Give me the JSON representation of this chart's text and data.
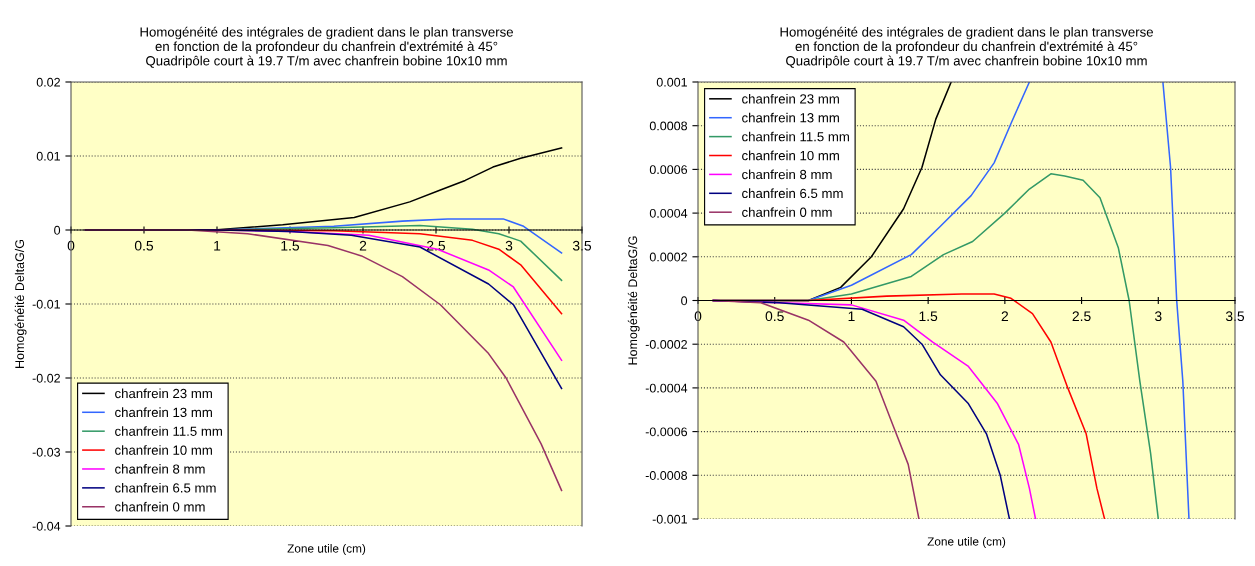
{
  "chart_data": [
    {
      "type": "line",
      "title": "Homogénéité des intégrales de gradient dans le plan transverse\nen fonction de la profondeur du chanfrein d'extrémité à 45°\nQuadripôle court à 19.7 T/m avec chanfrein bobine 10x10 mm",
      "xlabel": "Zone utile (cm)",
      "ylabel": "Homogénéité DeltaG/G",
      "xlim": [
        0,
        3.5
      ],
      "xticks": [
        0,
        0.5,
        1,
        1.5,
        2,
        2.5,
        3,
        3.5
      ],
      "ylim": [
        -0.04,
        0.02
      ],
      "yticks": [
        -0.04,
        -0.03,
        -0.02,
        -0.01,
        0,
        0.01,
        0.02
      ],
      "grid": "y",
      "legend": "bottom left",
      "marker": "none",
      "line_style": "solid",
      "series": [
        {
          "name": "chanfrein 23 mm",
          "color": "#000000",
          "x": [
            0.1,
            0.98,
            1.45,
            1.94,
            2.32,
            2.53,
            2.7,
            2.89,
            3.08,
            3.36
          ],
          "values": [
            0,
            0,
            0.0007,
            0.0017,
            0.0038,
            0.0054,
            0.0067,
            0.0085,
            0.0097,
            0.0111
          ]
        },
        {
          "name": "chanfrein 13 mm",
          "color": "#3366ff",
          "x": [
            0.1,
            1.0,
            1.8,
            2.27,
            2.58,
            2.96,
            3.1,
            3.36
          ],
          "values": [
            0,
            0,
            0.0005,
            0.0012,
            0.0015,
            0.0015,
            0.0005,
            -0.0031
          ]
        },
        {
          "name": "chanfrein 11.5 mm",
          "color": "#339966",
          "x": [
            0.1,
            1.0,
            1.8,
            2.39,
            2.75,
            2.93,
            3.08,
            3.36
          ],
          "values": [
            0,
            0,
            0.0003,
            0.0006,
            0.0001,
            -0.0005,
            -0.0015,
            -0.0068
          ]
        },
        {
          "name": "chanfrein 10 mm",
          "color": "#ff0000",
          "x": [
            0.1,
            1.0,
            1.8,
            2.39,
            2.75,
            2.93,
            3.08,
            3.36
          ],
          "values": [
            0,
            0,
            -0.0001,
            -0.0005,
            -0.0014,
            -0.0026,
            -0.0047,
            -0.0113
          ]
        },
        {
          "name": "chanfrein 8 mm",
          "color": "#ff00ff",
          "x": [
            0.1,
            1.0,
            1.5,
            2.04,
            2.51,
            2.86,
            3.03,
            3.36
          ],
          "values": [
            0,
            0,
            -0.0002,
            -0.0007,
            -0.0026,
            -0.0054,
            -0.0077,
            -0.0176
          ]
        },
        {
          "name": "chanfrein 6.5 mm",
          "color": "#000080",
          "x": [
            0.1,
            1.0,
            1.5,
            1.92,
            2.39,
            2.86,
            3.03,
            3.36
          ],
          "values": [
            0,
            0,
            -0.0002,
            -0.0007,
            -0.0023,
            -0.0073,
            -0.0101,
            -0.0214
          ]
        },
        {
          "name": "chanfrein 0 mm",
          "color": "#993366",
          "x": [
            0.1,
            0.8,
            1.21,
            1.76,
            1.99,
            2.27,
            2.53,
            2.86,
            2.98,
            3.22,
            3.36
          ],
          "values": [
            0,
            0,
            -0.0005,
            -0.0021,
            -0.0035,
            -0.0063,
            -0.0101,
            -0.0167,
            -0.02,
            -0.0289,
            -0.0352
          ]
        }
      ]
    },
    {
      "type": "line",
      "title": "Homogénéité des intégrales de gradient dans le plan transverse\nen fonction de la profondeur du chanfrein d'extrémité à 45°\nQuadripôle court à 19.7 T/m avec chanfrein bobine 10x10 mm",
      "xlabel": "Zone utile (cm)",
      "ylabel": "Homogénéité DeltaG/G",
      "xlim": [
        0,
        3.5
      ],
      "xticks": [
        0,
        0.5,
        1,
        1.5,
        2,
        2.5,
        3,
        3.5
      ],
      "ylim": [
        -0.001,
        0.001
      ],
      "yticks": [
        -0.001,
        -0.0008,
        -0.0006,
        -0.0004,
        -0.0002,
        0,
        0.0002,
        0.0004,
        0.0006,
        0.0008,
        0.001
      ],
      "grid": "y",
      "legend": "top left",
      "marker": "none",
      "line_style": "solid",
      "series": [
        {
          "name": "chanfrein 23 mm",
          "color": "#000000",
          "x": [
            0.1,
            0.72,
            0.93,
            1.13,
            1.34,
            1.46,
            1.55,
            1.65
          ],
          "values": [
            0,
            0,
            6e-05,
            0.0002,
            0.00042,
            0.00061,
            0.00083,
            0.001
          ]
        },
        {
          "name": "chanfrein 13 mm",
          "color": "#3366ff",
          "x": [
            0.1,
            0.72,
            1.0,
            1.39,
            1.58,
            1.78,
            1.93,
            2.04,
            2.16,
            2.6,
            3.03,
            3.08,
            3.12,
            3.16,
            3.2
          ],
          "values": [
            0,
            0,
            7e-05,
            0.00021,
            0.00034,
            0.00048,
            0.00063,
            0.00081,
            0.001,
            null,
            0.001,
            0.00061,
            0,
            -0.00037,
            -0.001
          ]
        },
        {
          "name": "chanfrein 11.5 mm",
          "color": "#339966",
          "x": [
            0.1,
            0.72,
            1.0,
            1.39,
            1.6,
            1.79,
            2.0,
            2.16,
            2.3,
            2.39,
            2.51,
            2.62,
            2.74,
            2.81,
            2.88,
            2.95,
            3.0
          ],
          "values": [
            0,
            0,
            3e-05,
            0.00011,
            0.00021,
            0.00027,
            0.0004,
            0.00051,
            0.00058,
            0.00057,
            0.00055,
            0.00047,
            0.00024,
            0,
            -0.00037,
            -0.0007,
            -0.001
          ]
        },
        {
          "name": "chanfrein 10 mm",
          "color": "#ff0000",
          "x": [
            0.1,
            0.72,
            1.23,
            1.72,
            1.93,
            2.04,
            2.18,
            2.3,
            2.41,
            2.53,
            2.6,
            2.65
          ],
          "values": [
            0,
            0,
            2e-05,
            3e-05,
            3e-05,
            1e-05,
            -6e-05,
            -0.00019,
            -0.0004,
            -0.00061,
            -0.00086,
            -0.001
          ]
        },
        {
          "name": "chanfrein 8 mm",
          "color": "#ff00ff",
          "x": [
            0.1,
            0.53,
            1.0,
            1.34,
            1.53,
            1.76,
            1.95,
            2.09,
            2.16,
            2.2
          ],
          "values": [
            0,
            -1e-05,
            -2e-05,
            -9e-05,
            -0.00019,
            -0.0003,
            -0.00047,
            -0.00066,
            -0.00086,
            -0.001
          ]
        },
        {
          "name": "chanfrein 6.5 mm",
          "color": "#000080",
          "x": [
            0.1,
            0.53,
            1.07,
            1.34,
            1.46,
            1.58,
            1.76,
            1.88,
            1.97,
            2.03
          ],
          "values": [
            0,
            -1e-05,
            -4e-05,
            -0.00012,
            -0.0002,
            -0.00034,
            -0.00047,
            -0.00061,
            -0.0008,
            -0.001
          ]
        },
        {
          "name": "chanfrein 0 mm",
          "color": "#993366",
          "x": [
            0.1,
            0.41,
            0.72,
            0.95,
            1.16,
            1.27,
            1.37,
            1.44
          ],
          "values": [
            0,
            -1e-05,
            -9e-05,
            -0.00019,
            -0.00037,
            -0.00057,
            -0.00075,
            -0.001
          ]
        }
      ]
    }
  ]
}
